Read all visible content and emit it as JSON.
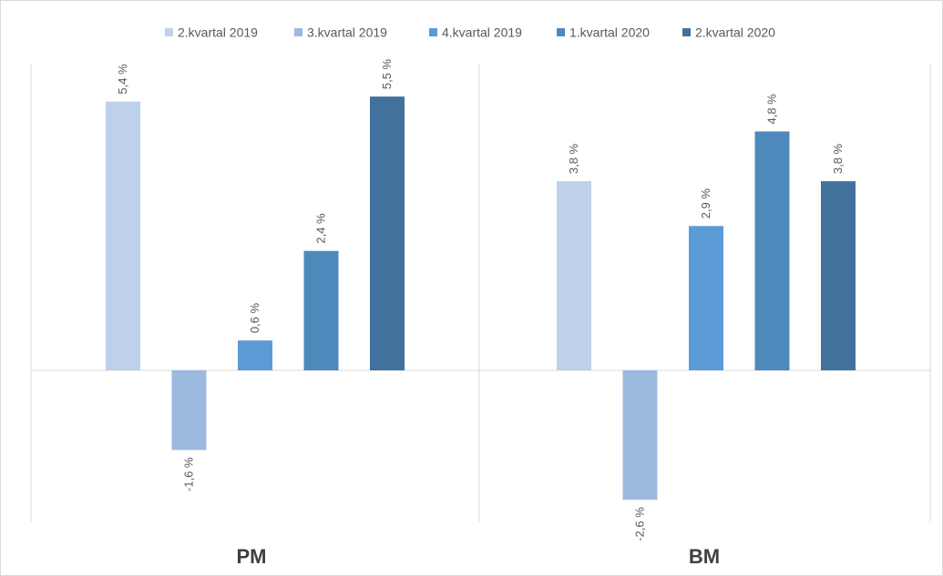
{
  "chart_data": {
    "type": "bar",
    "categories": [
      "PM",
      "BM"
    ],
    "series": [
      {
        "name": "2.kvartal 2019",
        "values": [
          5.4,
          3.8
        ],
        "labels": [
          "5,4 %",
          "3,8 %"
        ],
        "color": "#BDD1EA"
      },
      {
        "name": "3.kvartal 2019",
        "values": [
          -1.6,
          -2.6
        ],
        "labels": [
          "-1,6 %",
          "-2,6 %"
        ],
        "color": "#9CB9DE"
      },
      {
        "name": "4.kvartal 2019",
        "values": [
          0.6,
          2.9
        ],
        "labels": [
          "0,6 %",
          "2,9 %"
        ],
        "color": "#5B9BD5"
      },
      {
        "name": "1.kvartal 2020",
        "values": [
          2.4,
          4.8
        ],
        "labels": [
          "2,4 %",
          "4,8 %"
        ],
        "color": "#4F89BC"
      },
      {
        "name": "2.kvartal 2020",
        "values": [
          5.5,
          3.8
        ],
        "labels": [
          "5,5 %",
          "3,8 %"
        ],
        "color": "#41719C"
      }
    ],
    "ylim": [
      -3.2,
      6.0
    ],
    "legend_position": "top",
    "grid": false,
    "axis_color": "#d9d9d9",
    "title": "",
    "xlabel": "",
    "ylabel": ""
  }
}
